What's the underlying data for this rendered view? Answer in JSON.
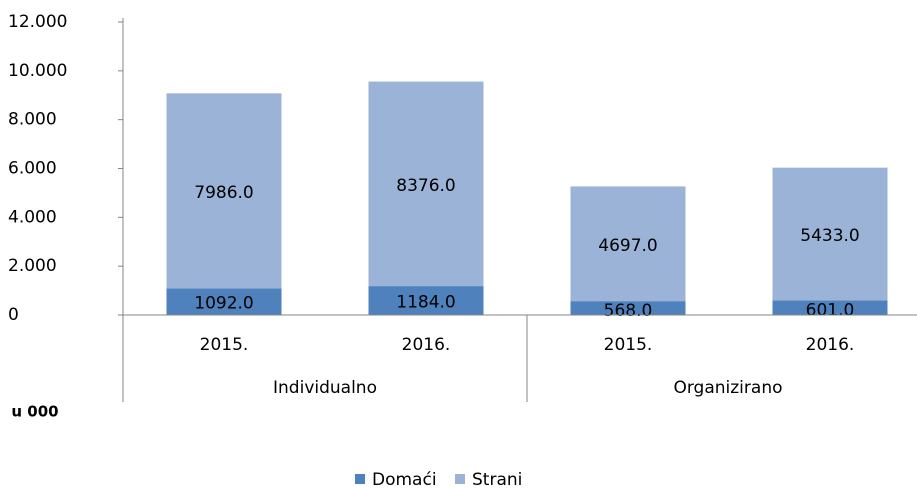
{
  "chart_data": {
    "type": "bar",
    "stacked": true,
    "categories": [
      "2015.",
      "2016.",
      "2015.",
      "2016."
    ],
    "groups": [
      {
        "name": "Individualno",
        "span": 2
      },
      {
        "name": "Organizirano",
        "span": 2
      }
    ],
    "annotation": "u 000",
    "series": [
      {
        "name": "Domaći",
        "color": "#4f81bd",
        "values": [
          1092,
          1184,
          568,
          601
        ],
        "value_labels": [
          "1092.0",
          "1184.0",
          "568.0",
          "601.0"
        ]
      },
      {
        "name": "Strani",
        "color": "#9bb3d7",
        "values": [
          7986,
          8376,
          4697,
          5433
        ],
        "value_labels": [
          "7986.0",
          "8376.0",
          "4697.0",
          "5433.0"
        ]
      }
    ],
    "ylim": [
      0,
      12000
    ],
    "yticks": [
      0,
      {
        "value": 2000,
        "label": "2.000"
      },
      {
        "value": 4000,
        "label": "4.000"
      },
      {
        "value": 6000,
        "label": "6.000"
      },
      {
        "value": 8000,
        "label": "8.000"
      },
      {
        "value": 10000,
        "label": "10.000"
      },
      {
        "value": 12000,
        "label": "12.000"
      }
    ],
    "legend": "bottom",
    "grid": false
  }
}
